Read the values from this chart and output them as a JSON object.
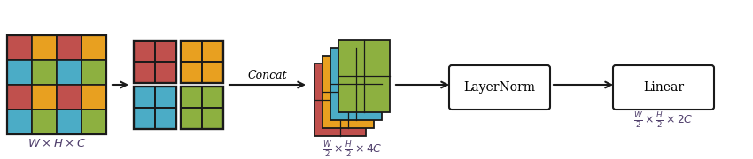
{
  "colors": {
    "red": "#C0504D",
    "yellow": "#E8A020",
    "teal": "#4BACC6",
    "green": "#8DB040",
    "dark_outline": "#1a1a1a",
    "text_color": "#4F3E6B"
  },
  "big_grid_colors": [
    "red",
    "yellow",
    "red",
    "yellow",
    "teal",
    "green",
    "teal",
    "green",
    "red",
    "yellow",
    "red",
    "yellow",
    "teal",
    "green",
    "teal",
    "green"
  ],
  "label_whc": "$W\\times H\\times C$",
  "label_wh4c": "$\\frac{W}{2}\\times\\frac{H}{2}\\times 4C$",
  "label_wh2c": "$\\frac{W}{2}\\times\\frac{H}{2}\\times 2C$",
  "label_concat": "Concat",
  "label_layernorm": "LayerNorm",
  "label_linear": "Linear",
  "figsize": [
    8.5,
    1.8
  ],
  "dpi": 100
}
